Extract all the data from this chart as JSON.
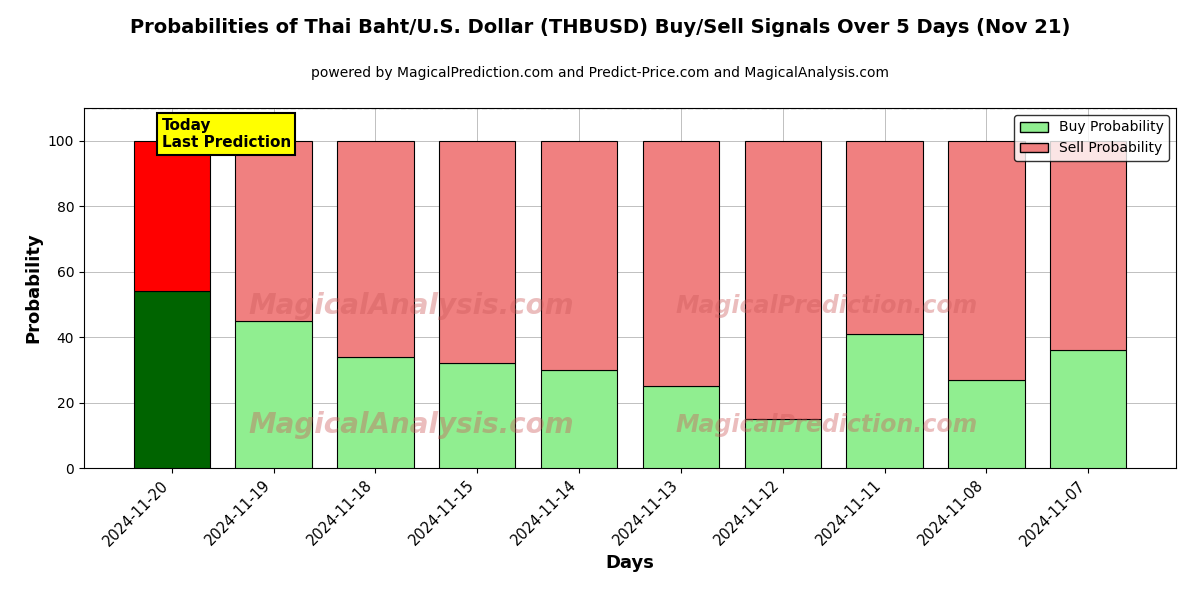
{
  "title": "Probabilities of Thai Baht/U.S. Dollar (THBUSD) Buy/Sell Signals Over 5 Days (Nov 21)",
  "subtitle": "powered by MagicalPrediction.com and Predict-Price.com and MagicalAnalysis.com",
  "xlabel": "Days",
  "ylabel": "Probability",
  "categories": [
    "2024-11-20",
    "2024-11-19",
    "2024-11-18",
    "2024-11-15",
    "2024-11-14",
    "2024-11-13",
    "2024-11-12",
    "2024-11-11",
    "2024-11-08",
    "2024-11-07"
  ],
  "buy_values": [
    54,
    45,
    34,
    32,
    30,
    25,
    15,
    41,
    27,
    36
  ],
  "sell_values": [
    46,
    55,
    66,
    68,
    70,
    75,
    85,
    59,
    73,
    64
  ],
  "today_buy_color": "#006400",
  "today_sell_color": "#FF0000",
  "other_buy_color": "#90EE90",
  "other_sell_color": "#F08080",
  "today_label_bg": "#FFFF00",
  "today_label_text": "Today\nLast Prediction",
  "legend_buy_label": "Buy Probability",
  "legend_sell_label": "Sell Probability",
  "ylim": [
    0,
    110
  ],
  "yticks": [
    0,
    20,
    40,
    60,
    80,
    100
  ],
  "dashed_line_y": 110,
  "bar_edge_color": "#000000",
  "bar_linewidth": 0.8,
  "bar_width": 0.75
}
